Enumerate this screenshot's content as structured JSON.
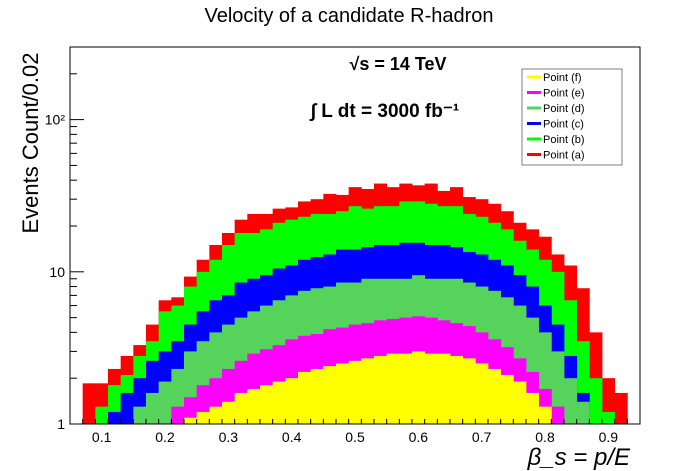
{
  "chart_data": {
    "type": "bar",
    "title": "Velocity of a candidate R-hadron",
    "xlabel": "β_s = p/E",
    "ylabel": "Events Count/0.02",
    "xlim": [
      0.05,
      0.95
    ],
    "ylim": [
      1,
      300
    ],
    "yscale": "log",
    "stacked": true,
    "x_ticks": [
      "0.1",
      "0.2",
      "0.3",
      "0.4",
      "0.5",
      "0.6",
      "0.7",
      "0.8",
      "0.9"
    ],
    "y_ticks": [
      "1",
      "10",
      "10²"
    ],
    "annotations": [
      "√s = 14 TeV",
      "∫ L dt = 3000 fb⁻¹"
    ],
    "legend_position": "top-right",
    "legend": [
      "Point (f)",
      "Point (e)",
      "Point (d)",
      "Point (c)",
      "Point (b)",
      "Point (a)"
    ],
    "bin_width": 0.02,
    "bin_starts": [
      0.07,
      0.09,
      0.11,
      0.13,
      0.15,
      0.17,
      0.19,
      0.21,
      0.23,
      0.25,
      0.27,
      0.29,
      0.31,
      0.33,
      0.35,
      0.37,
      0.39,
      0.41,
      0.43,
      0.45,
      0.47,
      0.49,
      0.51,
      0.53,
      0.55,
      0.57,
      0.59,
      0.61,
      0.63,
      0.65,
      0.67,
      0.69,
      0.71,
      0.73,
      0.75,
      0.77,
      0.79,
      0.81,
      0.83,
      0.85,
      0.87,
      0.89,
      0.91,
      0.93
    ],
    "series_cumulative": [
      {
        "name": "Point (a)",
        "color": "#ff0000",
        "values": [
          1.85,
          1.85,
          2.3,
          2.8,
          3.3,
          4.5,
          6.5,
          6.8,
          9.3,
          12.0,
          15.0,
          18.0,
          22.0,
          24.0,
          24.0,
          26.0,
          26.5,
          29.0,
          30.0,
          32.5,
          32.0,
          36.0,
          35.0,
          38.0,
          36.0,
          38.0,
          37.0,
          38.0,
          34.0,
          36.0,
          31.0,
          30.0,
          28.0,
          25.0,
          21.0,
          19.0,
          17.0,
          13.0,
          11.0,
          7.8,
          4.0,
          2.0,
          1.6,
          1.0
        ]
      },
      {
        "name": "Point (b)",
        "color": "#00ff00",
        "values": [
          1.0,
          1.3,
          1.8,
          2.1,
          2.8,
          3.5,
          5.5,
          6.0,
          8.0,
          10.0,
          12.0,
          15.0,
          18.0,
          18.0,
          19.0,
          21.0,
          22.0,
          23.0,
          24.0,
          24.0,
          25.0,
          27.0,
          26.0,
          27.0,
          27.0,
          29.0,
          29.0,
          28.0,
          27.0,
          27.0,
          24.0,
          23.0,
          21.0,
          19.0,
          16.0,
          14.0,
          12.0,
          10.0,
          6.5,
          3.5,
          2.0,
          1.2,
          1.0,
          1.0
        ]
      },
      {
        "name": "Point (c)",
        "color": "#0000ff",
        "values": [
          1.0,
          1.0,
          1.2,
          1.6,
          2.0,
          2.6,
          3.0,
          3.5,
          4.5,
          5.5,
          6.5,
          7.0,
          8.5,
          9.0,
          9.5,
          10.5,
          11.0,
          12.0,
          12.5,
          13.0,
          14.0,
          14.0,
          14.5,
          15.0,
          15.0,
          15.5,
          15.5,
          15.0,
          15.0,
          14.5,
          13.5,
          13.0,
          12.0,
          11.0,
          9.5,
          8.0,
          6.0,
          4.5,
          2.8,
          1.6,
          1.0,
          1.0,
          1.0,
          1.0
        ]
      },
      {
        "name": "Point (d)",
        "color": "#55d35a",
        "values": [
          1.0,
          1.0,
          1.0,
          1.0,
          1.3,
          1.6,
          1.9,
          2.3,
          3.0,
          3.5,
          4.0,
          4.5,
          5.0,
          5.5,
          6.0,
          6.5,
          7.0,
          7.5,
          7.8,
          8.0,
          8.5,
          8.5,
          9.0,
          9.0,
          9.0,
          9.0,
          9.5,
          9.0,
          9.0,
          9.0,
          8.5,
          8.0,
          7.5,
          6.8,
          6.0,
          5.0,
          4.0,
          3.0,
          2.0,
          1.4,
          1.0,
          1.0,
          1.0,
          1.0
        ]
      },
      {
        "name": "Point (e)",
        "color": "#ff00ff",
        "values": [
          1.0,
          1.0,
          1.0,
          1.0,
          1.0,
          1.0,
          1.0,
          1.3,
          1.5,
          1.8,
          2.0,
          2.3,
          2.6,
          2.9,
          3.1,
          3.3,
          3.6,
          3.8,
          3.9,
          4.2,
          4.3,
          4.5,
          4.6,
          4.8,
          4.9,
          5.0,
          5.1,
          5.0,
          4.8,
          4.6,
          4.4,
          4.0,
          3.6,
          3.2,
          2.7,
          2.2,
          1.7,
          1.3,
          1.0,
          1.0,
          1.0,
          1.0,
          1.0,
          1.0
        ]
      },
      {
        "name": "Point (f)",
        "color": "#ffff00",
        "values": [
          1.0,
          1.0,
          1.0,
          1.0,
          1.0,
          1.0,
          1.0,
          1.0,
          1.1,
          1.2,
          1.3,
          1.4,
          1.6,
          1.7,
          1.8,
          1.9,
          2.0,
          2.2,
          2.3,
          2.4,
          2.5,
          2.6,
          2.7,
          2.8,
          2.9,
          2.9,
          3.0,
          2.9,
          2.9,
          2.8,
          2.7,
          2.5,
          2.3,
          2.1,
          1.9,
          1.6,
          1.3,
          1.0,
          1.0,
          1.0,
          1.0,
          1.0,
          1.0,
          1.0
        ]
      }
    ]
  }
}
